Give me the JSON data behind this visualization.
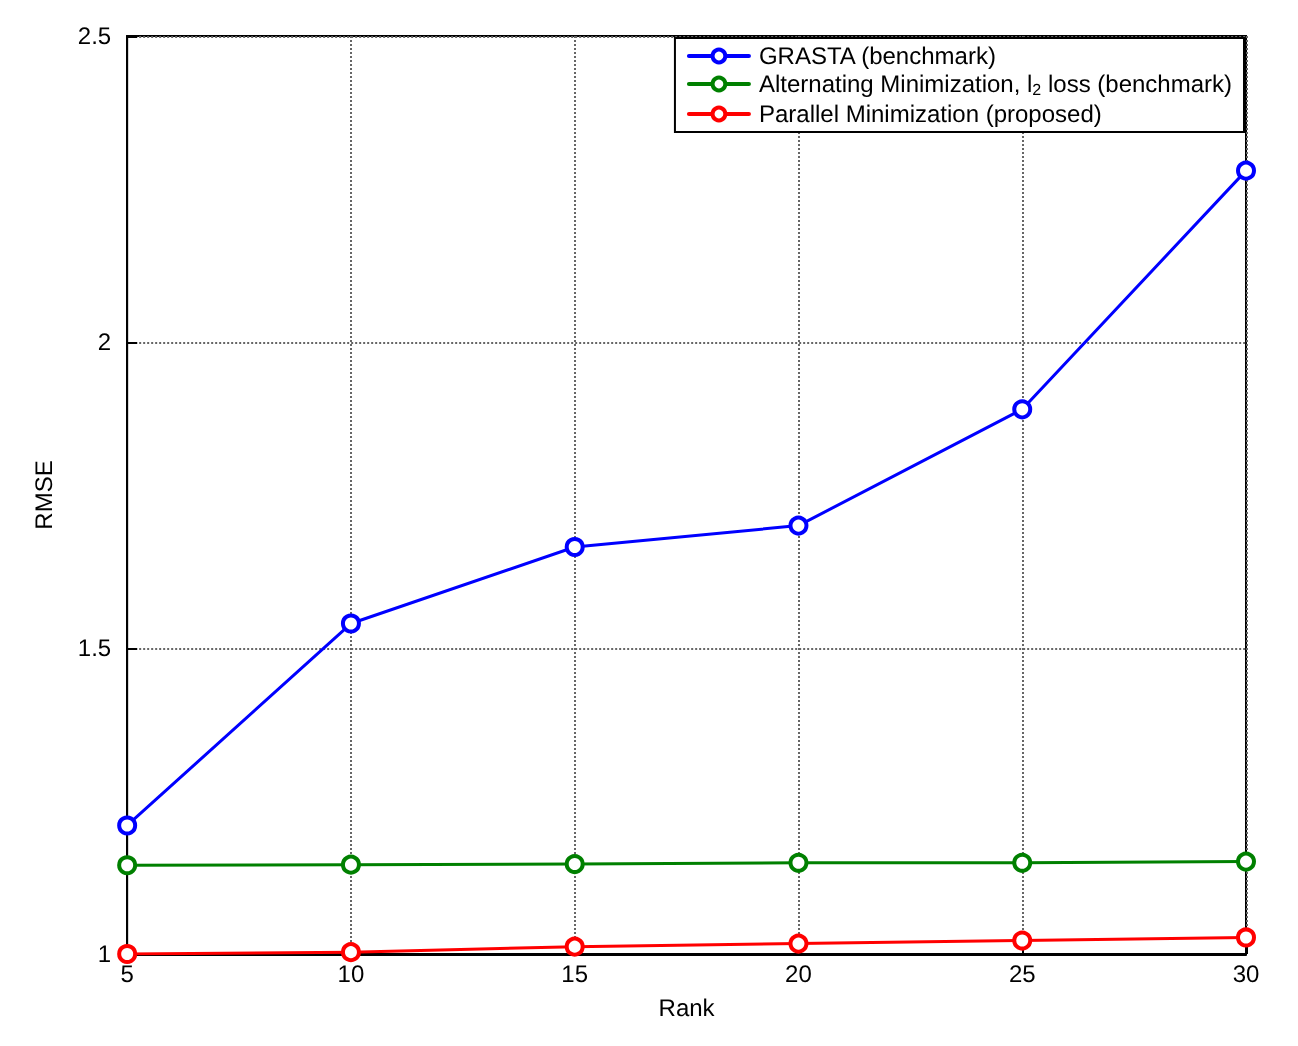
{
  "chart_data": {
    "type": "line",
    "xlabel": "Rank",
    "ylabel": "RMSE",
    "x": [
      5,
      10,
      15,
      20,
      25,
      30
    ],
    "series": [
      {
        "name": "GRASTA (benchmark)",
        "color": "#0000ff",
        "values": [
          1.21,
          1.54,
          1.665,
          1.7,
          1.89,
          2.28
        ]
      },
      {
        "name": "Alternating Minimization, l$_{2}$ loss (benchmark)",
        "color": "#008000",
        "values": [
          1.145,
          1.146,
          1.147,
          1.149,
          1.149,
          1.151
        ]
      },
      {
        "name": "Parallel Minimization (proposed)",
        "color": "#ff0000",
        "values": [
          1.0,
          1.003,
          1.012,
          1.017,
          1.022,
          1.027
        ]
      }
    ],
    "xlim": [
      5,
      30
    ],
    "xticks": [
      5,
      10,
      15,
      20,
      25,
      30
    ],
    "ylim": [
      1,
      2.5
    ],
    "yticks": [
      1,
      1.5,
      2,
      2.5
    ],
    "grid": true,
    "legend": "top right",
    "marker": "circle",
    "line_style": "solid"
  }
}
